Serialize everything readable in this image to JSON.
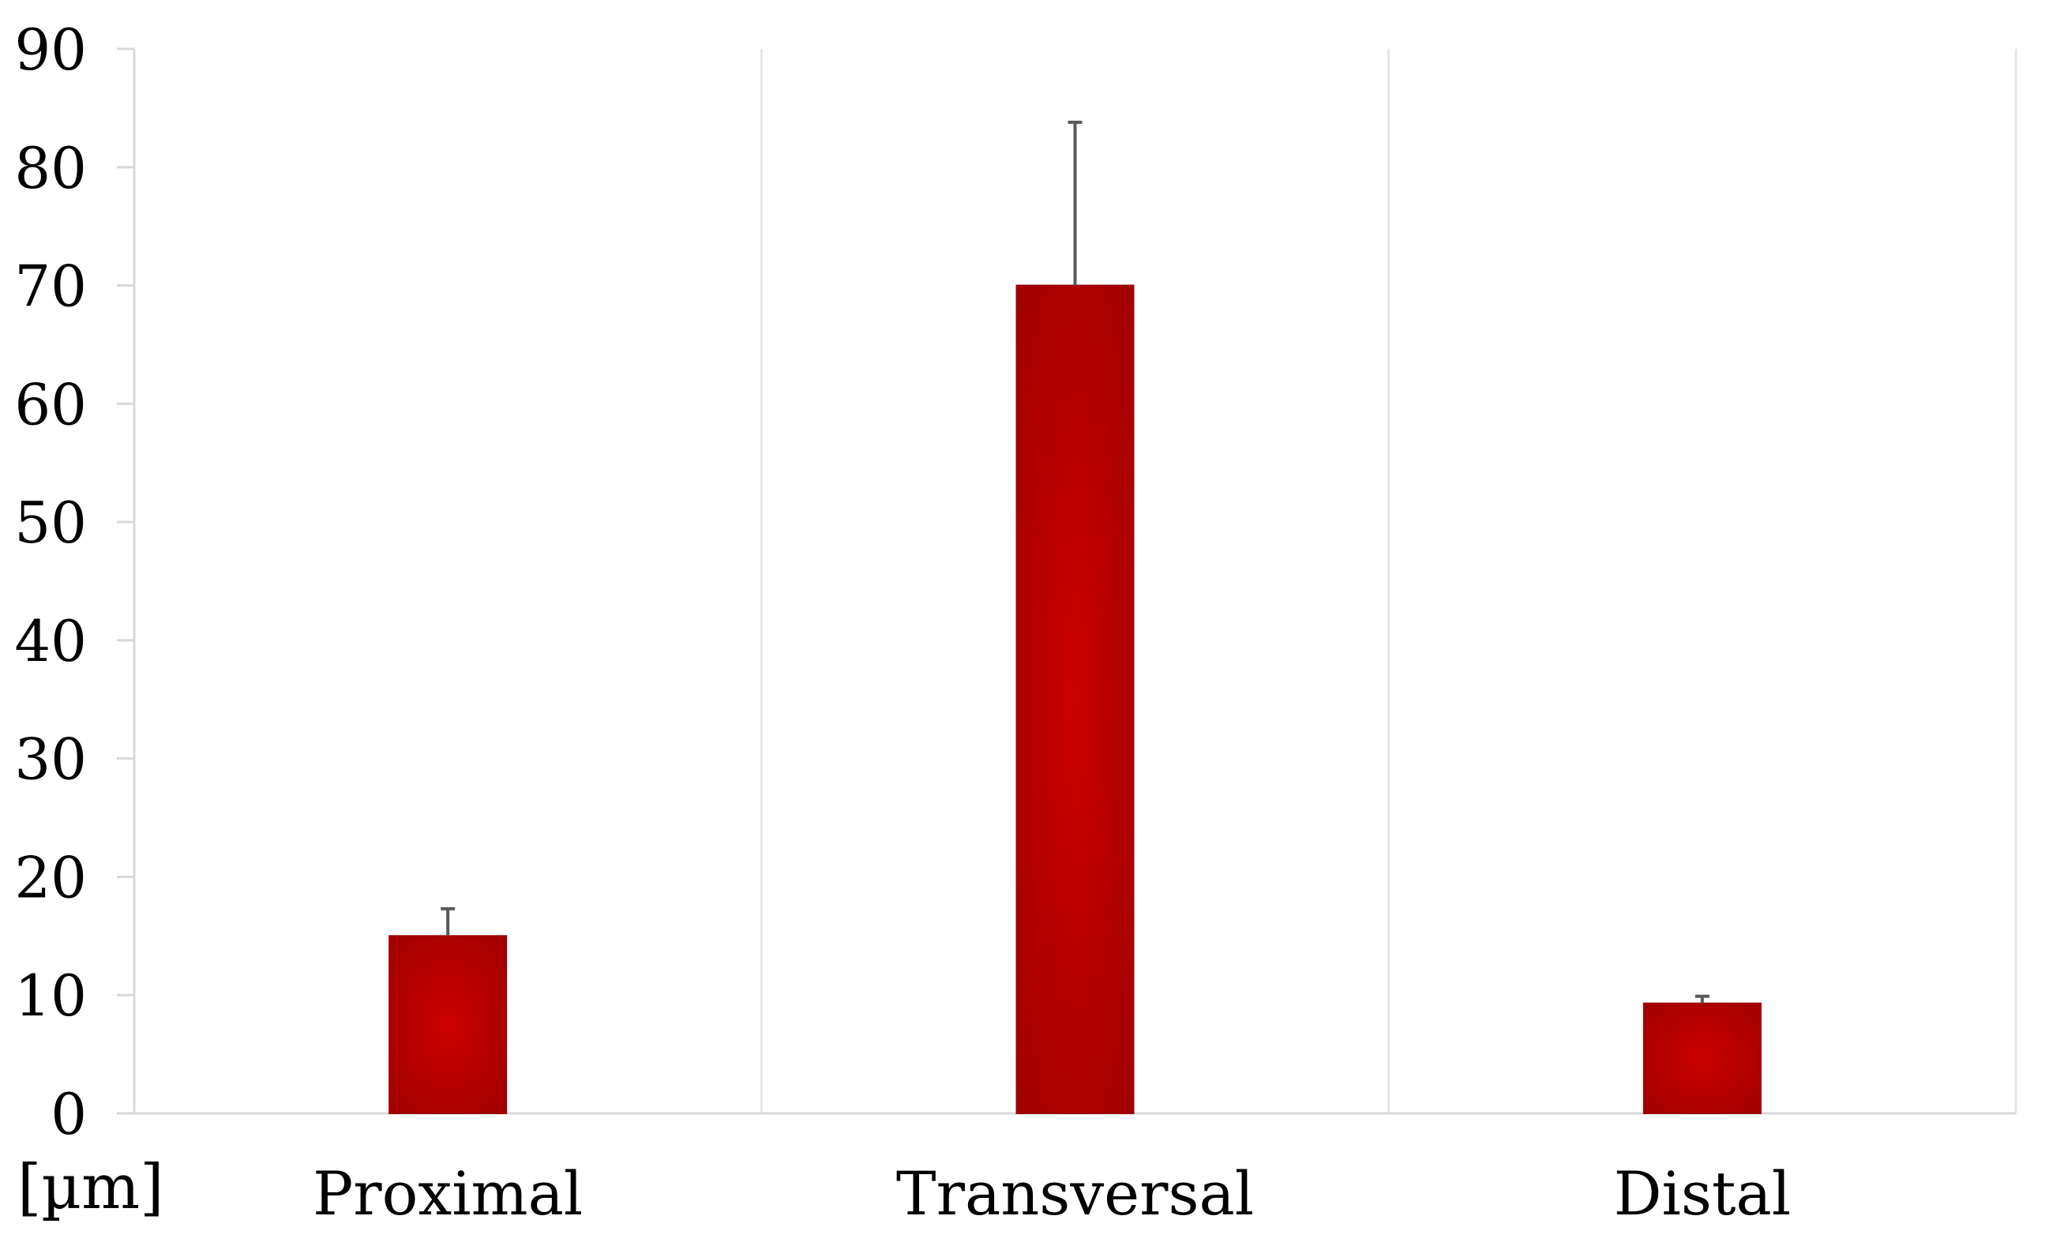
{
  "chart_data": {
    "type": "bar",
    "categories": [
      "Proximal",
      "Transversal",
      "Distal"
    ],
    "series": [
      {
        "values": [
          15,
          70,
          9.3
        ],
        "error_plus": [
          2.3,
          13.8,
          0.6
        ]
      }
    ],
    "title": "",
    "xlabel": "",
    "ylabel": "[µm]",
    "ylim": [
      0,
      90
    ],
    "yticks": [
      0,
      10,
      20,
      30,
      40,
      50,
      60,
      70,
      80,
      90
    ],
    "grid": "vertical category separators",
    "legend": "none",
    "colors": {
      "bar": "#c00000",
      "bar_edge": "#9e0000",
      "error_bar": "#595959",
      "axis": "#d9d9d9",
      "grid": "#e6e6e6"
    }
  }
}
